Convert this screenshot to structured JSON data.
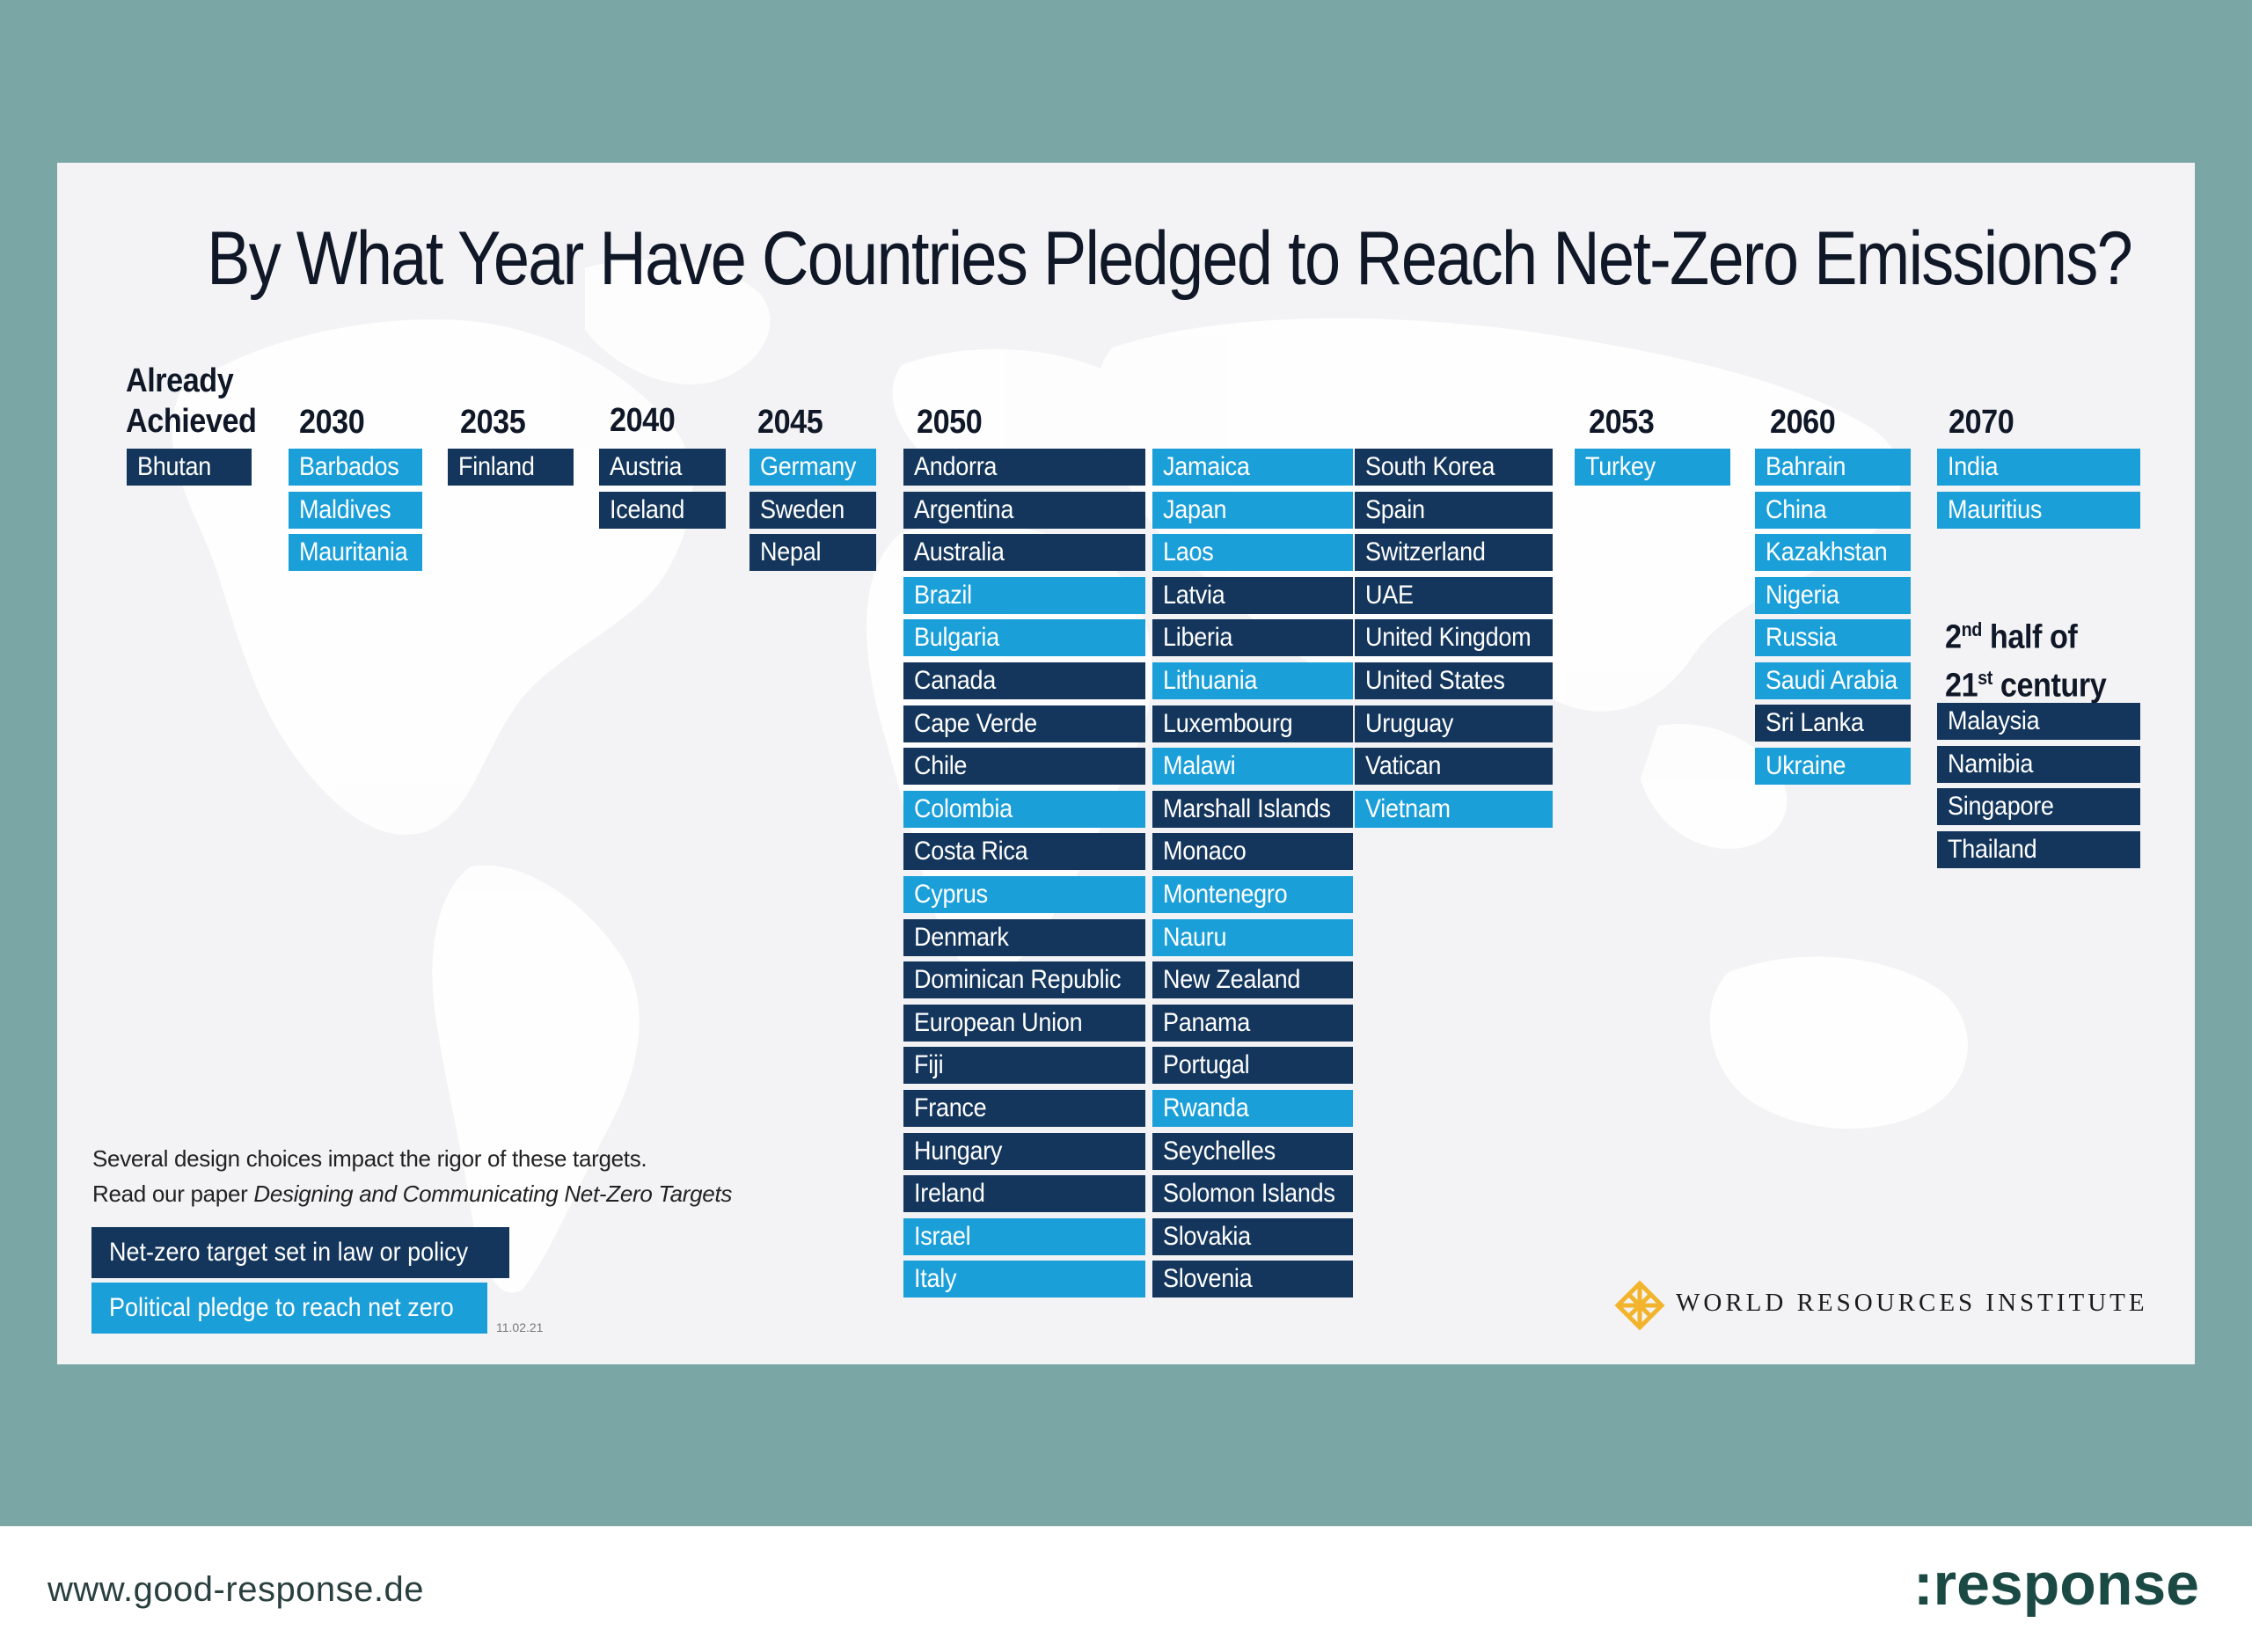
{
  "title": "By What Year Have Countries Pledged to Reach Net-Zero Emissions?",
  "colors": {
    "dark": "#14365c",
    "light": "#1b9fd9",
    "background": "#7aa6a6"
  },
  "headers": {
    "achieved": [
      "Already",
      "Achieved"
    ],
    "y2030": "2030",
    "y2035": "2035",
    "y2040": "2040",
    "y2045": "2045",
    "y2050": "2050",
    "y2053": "2053",
    "y2060": "2060",
    "y2070": "2070",
    "second_half": {
      "line1_pre": "2",
      "line1_sup": "nd",
      "line1_post": " half of",
      "line2_pre": "21",
      "line2_sup": "st",
      "line2_post": " century"
    }
  },
  "countries": {
    "achieved": [
      {
        "name": "Bhutan",
        "type": "dark"
      }
    ],
    "y2030": [
      {
        "name": "Barbados",
        "type": "light"
      },
      {
        "name": "Maldives",
        "type": "light"
      },
      {
        "name": "Mauritania",
        "type": "light"
      }
    ],
    "y2035": [
      {
        "name": "Finland",
        "type": "dark"
      }
    ],
    "y2040": [
      {
        "name": "Austria",
        "type": "dark"
      },
      {
        "name": "Iceland",
        "type": "dark"
      }
    ],
    "y2045": [
      {
        "name": "Germany",
        "type": "light"
      },
      {
        "name": "Sweden",
        "type": "dark"
      },
      {
        "name": "Nepal",
        "type": "dark"
      }
    ],
    "y2050_col1": [
      {
        "name": "Andorra",
        "type": "dark"
      },
      {
        "name": "Argentina",
        "type": "dark"
      },
      {
        "name": "Australia",
        "type": "dark"
      },
      {
        "name": "Brazil",
        "type": "light"
      },
      {
        "name": "Bulgaria",
        "type": "light"
      },
      {
        "name": "Canada",
        "type": "dark"
      },
      {
        "name": "Cape Verde",
        "type": "dark"
      },
      {
        "name": "Chile",
        "type": "dark"
      },
      {
        "name": "Colombia",
        "type": "light"
      },
      {
        "name": "Costa Rica",
        "type": "dark"
      },
      {
        "name": "Cyprus",
        "type": "light"
      },
      {
        "name": "Denmark",
        "type": "dark"
      },
      {
        "name": "Dominican Republic",
        "type": "dark"
      },
      {
        "name": "European Union",
        "type": "dark"
      },
      {
        "name": "Fiji",
        "type": "dark"
      },
      {
        "name": "France",
        "type": "dark"
      },
      {
        "name": "Hungary",
        "type": "dark"
      },
      {
        "name": "Ireland",
        "type": "dark"
      },
      {
        "name": "Israel",
        "type": "light"
      },
      {
        "name": "Italy",
        "type": "light"
      }
    ],
    "y2050_col2": [
      {
        "name": "Jamaica",
        "type": "light"
      },
      {
        "name": "Japan",
        "type": "light"
      },
      {
        "name": "Laos",
        "type": "light"
      },
      {
        "name": "Latvia",
        "type": "dark"
      },
      {
        "name": "Liberia",
        "type": "dark"
      },
      {
        "name": "Lithuania",
        "type": "light"
      },
      {
        "name": "Luxembourg",
        "type": "dark"
      },
      {
        "name": "Malawi",
        "type": "light"
      },
      {
        "name": "Marshall Islands",
        "type": "dark"
      },
      {
        "name": "Monaco",
        "type": "dark"
      },
      {
        "name": "Montenegro",
        "type": "light"
      },
      {
        "name": "Nauru",
        "type": "light"
      },
      {
        "name": "New Zealand",
        "type": "dark"
      },
      {
        "name": "Panama",
        "type": "dark"
      },
      {
        "name": "Portugal",
        "type": "dark"
      },
      {
        "name": "Rwanda",
        "type": "light"
      },
      {
        "name": "Seychelles",
        "type": "dark"
      },
      {
        "name": "Solomon Islands",
        "type": "dark"
      },
      {
        "name": "Slovakia",
        "type": "dark"
      },
      {
        "name": "Slovenia",
        "type": "dark"
      }
    ],
    "y2050_col3": [
      {
        "name": "South Korea",
        "type": "dark"
      },
      {
        "name": "Spain",
        "type": "dark"
      },
      {
        "name": "Switzerland",
        "type": "dark"
      },
      {
        "name": "UAE",
        "type": "dark"
      },
      {
        "name": "United Kingdom",
        "type": "dark"
      },
      {
        "name": "United States",
        "type": "dark"
      },
      {
        "name": "Uruguay",
        "type": "dark"
      },
      {
        "name": "Vatican",
        "type": "dark"
      },
      {
        "name": "Vietnam",
        "type": "light"
      }
    ],
    "y2053": [
      {
        "name": "Turkey",
        "type": "light"
      }
    ],
    "y2060": [
      {
        "name": "Bahrain",
        "type": "light"
      },
      {
        "name": "China",
        "type": "light"
      },
      {
        "name": "Kazakhstan",
        "type": "light"
      },
      {
        "name": "Nigeria",
        "type": "light"
      },
      {
        "name": "Russia",
        "type": "light"
      },
      {
        "name": "Saudi Arabia",
        "type": "light"
      },
      {
        "name": "Sri Lanka",
        "type": "dark"
      },
      {
        "name": "Ukraine",
        "type": "light"
      }
    ],
    "y2070": [
      {
        "name": "India",
        "type": "light"
      },
      {
        "name": "Mauritius",
        "type": "light"
      }
    ],
    "second_half": [
      {
        "name": "Malaysia",
        "type": "dark"
      },
      {
        "name": "Namibia",
        "type": "dark"
      },
      {
        "name": "Singapore",
        "type": "dark"
      },
      {
        "name": "Thailand",
        "type": "dark"
      }
    ]
  },
  "note": {
    "line1": "Several design choices impact the rigor of these targets.",
    "line2_prefix": "Read our paper ",
    "line2_italic": "Designing and Communicating Net-Zero Targets"
  },
  "legend": {
    "dark_label": "Net-zero target set in law or policy",
    "light_label": "Political pledge to reach net zero"
  },
  "stamp": "11.02.21",
  "wri_name": "WORLD RESOURCES INSTITUTE",
  "footer": {
    "url": "www.good-response.de",
    "brand": ":response"
  }
}
